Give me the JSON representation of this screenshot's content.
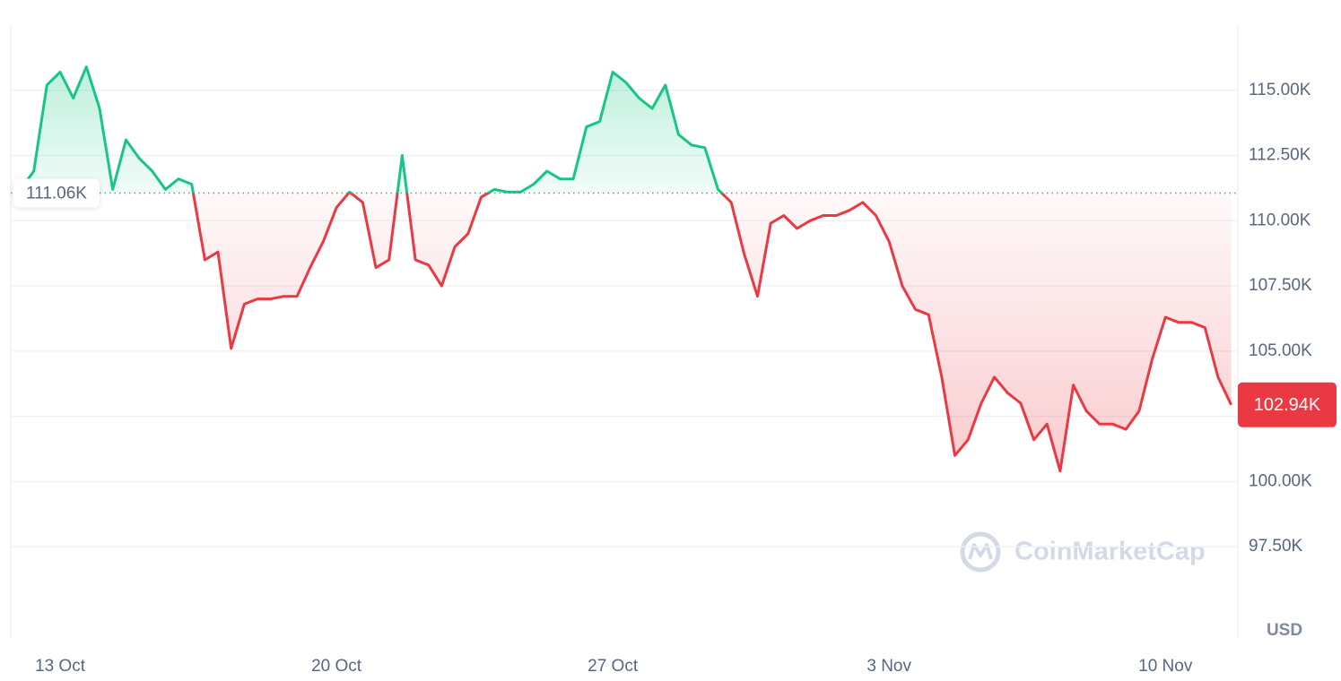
{
  "chart_data": {
    "type": "line",
    "categories": [
      null,
      null,
      null,
      "13 Oct",
      null,
      null,
      null,
      null,
      null,
      null,
      null,
      null,
      null,
      null,
      null,
      null,
      null,
      null,
      null,
      null,
      null,
      null,
      null,
      null,
      "20 Oct",
      null,
      null,
      null,
      null,
      null,
      null,
      null,
      null,
      null,
      null,
      null,
      null,
      null,
      null,
      null,
      null,
      null,
      null,
      null,
      null,
      "27 Oct",
      null,
      null,
      null,
      null,
      null,
      null,
      null,
      null,
      null,
      null,
      null,
      null,
      null,
      null,
      null,
      null,
      null,
      null,
      null,
      null,
      "3 Nov",
      null,
      null,
      null,
      null,
      null,
      null,
      null,
      null,
      null,
      null,
      null,
      null,
      null,
      null,
      null,
      null,
      null,
      null,
      null,
      null,
      "10 Nov",
      null,
      null,
      null,
      null,
      null
    ],
    "values": [
      111200,
      111900,
      115200,
      115700,
      114700,
      115900,
      114300,
      111200,
      113100,
      112400,
      111900,
      111200,
      111600,
      111400,
      108500,
      108800,
      105100,
      106800,
      107000,
      107000,
      107100,
      107100,
      108200,
      109200,
      110500,
      111100,
      110700,
      108200,
      108500,
      112500,
      108500,
      108300,
      107500,
      109000,
      109500,
      110900,
      111200,
      111100,
      111100,
      111400,
      111900,
      111600,
      111600,
      113600,
      113800,
      115700,
      115300,
      114700,
      114300,
      115200,
      113300,
      112900,
      112800,
      111200,
      110700,
      108700,
      107100,
      109900,
      110200,
      109700,
      110000,
      110200,
      110200,
      110400,
      110700,
      110200,
      109200,
      107500,
      106600,
      106400,
      104000,
      101000,
      101600,
      103000,
      104000,
      103400,
      103000,
      101600,
      102200,
      100400,
      103700,
      102700,
      102200,
      102200,
      102000,
      102700,
      104700,
      106300,
      106100,
      106100,
      105900,
      104000,
      102940
    ],
    "value_labels": [
      null,
      null,
      null,
      null,
      null,
      null,
      null,
      null,
      null,
      null,
      null,
      null,
      null,
      null,
      null,
      null,
      null,
      null,
      null,
      null,
      null,
      null,
      null,
      null,
      null,
      null,
      null,
      null,
      null,
      null,
      null,
      null,
      null,
      null,
      null,
      null,
      null,
      null,
      null,
      null,
      null,
      null,
      null,
      null,
      null,
      null,
      null,
      null,
      null,
      null,
      null,
      null,
      null,
      null,
      null,
      null,
      null,
      null,
      null,
      null,
      null,
      null,
      null,
      null,
      null,
      null,
      null,
      null,
      null,
      null,
      null,
      null,
      null,
      null,
      null,
      null,
      null,
      null,
      null,
      null,
      null,
      null,
      null,
      null,
      null,
      null,
      null,
      null,
      null,
      null,
      null,
      null,
      "102.94K"
    ],
    "baseline": {
      "value": 111060,
      "label": "111.06K"
    },
    "above_color": "#16c784",
    "below_color": "#ea3943",
    "ylim": [
      94000,
      117500
    ],
    "yticks": [
      {
        "value": 97500,
        "label": "97.50K"
      },
      {
        "value": 100000,
        "label": "100.00K"
      },
      {
        "value": 102500,
        "label": ""
      },
      {
        "value": 105000,
        "label": "105.00K"
      },
      {
        "value": 107500,
        "label": "107.50K"
      },
      {
        "value": 110000,
        "label": "110.00K"
      },
      {
        "value": 112500,
        "label": "112.50K"
      },
      {
        "value": 115000,
        "label": "115.00K"
      }
    ],
    "grid": true,
    "currency": "USD",
    "watermark": "CoinMarketCap"
  }
}
